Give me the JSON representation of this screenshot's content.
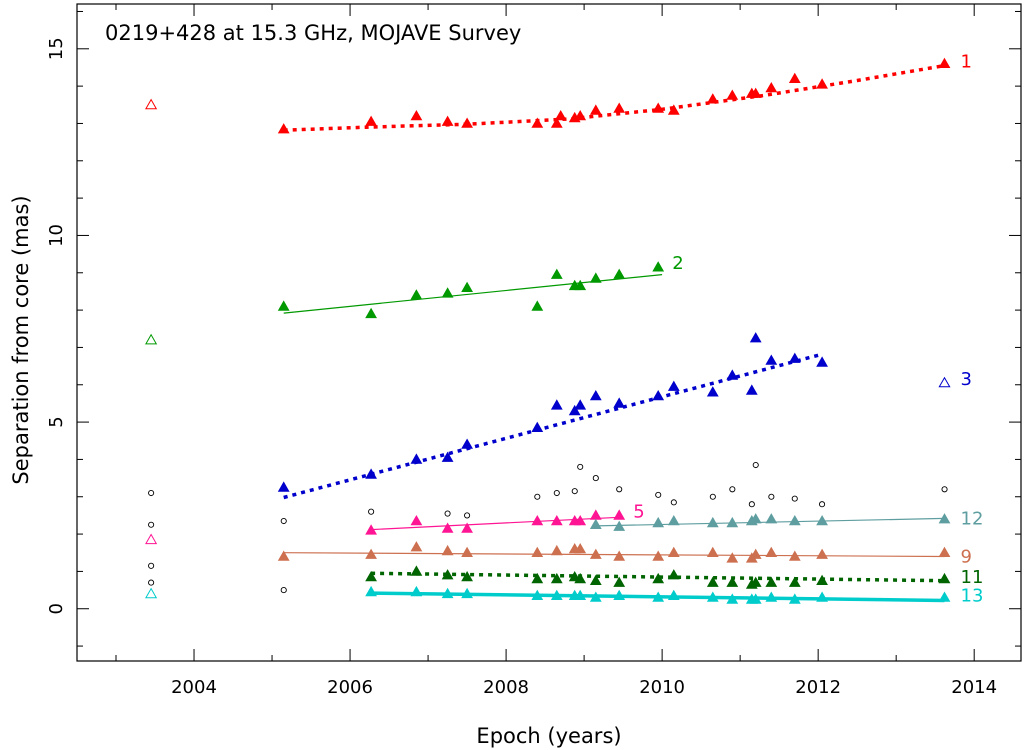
{
  "chart_data": {
    "type": "scatter",
    "title": "0219+428 at 15.3 GHz, MOJAVE Survey",
    "xlabel": "Epoch (years)",
    "ylabel": "Separation from core (mas)",
    "xlim": [
      2002.5,
      2014.6
    ],
    "ylim": [
      -1.4,
      16.2
    ],
    "xticks": [
      2004,
      2006,
      2008,
      2010,
      2012,
      2014
    ],
    "yticks": [
      0,
      5,
      10,
      15
    ],
    "xminor": [
      2003,
      2005,
      2007,
      2009,
      2011,
      2013
    ],
    "series": [
      {
        "name": "1",
        "color": "#ff0000",
        "fit": {
          "style": "dotted",
          "x": [
            2005.15,
            2006.2,
            2007.5,
            2008.8,
            2010.0,
            2011.3,
            2012.5,
            2013.62
          ],
          "y": [
            12.82,
            12.9,
            12.98,
            13.12,
            13.38,
            13.75,
            14.15,
            14.55
          ]
        },
        "points": [
          [
            2005.15,
            12.85
          ],
          [
            2006.27,
            13.05
          ],
          [
            2006.85,
            13.2
          ],
          [
            2007.25,
            13.05
          ],
          [
            2007.5,
            13.0
          ],
          [
            2008.4,
            13.0
          ],
          [
            2008.65,
            13.0
          ],
          [
            2008.7,
            13.2
          ],
          [
            2008.88,
            13.15
          ],
          [
            2008.95,
            13.2
          ],
          [
            2009.15,
            13.35
          ],
          [
            2009.45,
            13.4
          ],
          [
            2009.95,
            13.4
          ],
          [
            2010.15,
            13.35
          ],
          [
            2010.65,
            13.65
          ],
          [
            2010.9,
            13.75
          ],
          [
            2011.15,
            13.8
          ],
          [
            2011.2,
            13.8
          ],
          [
            2011.4,
            13.95
          ],
          [
            2011.7,
            14.2
          ],
          [
            2012.05,
            14.05
          ],
          [
            2013.62,
            14.6
          ]
        ],
        "label": "1"
      },
      {
        "name": "2",
        "color": "#009900",
        "fit": {
          "style": "solid",
          "x": [
            2005.15,
            2010.0
          ],
          "y": [
            7.92,
            8.95
          ]
        },
        "points": [
          [
            2005.15,
            8.1
          ],
          [
            2006.27,
            7.9
          ],
          [
            2006.85,
            8.4
          ],
          [
            2007.25,
            8.45
          ],
          [
            2007.5,
            8.6
          ],
          [
            2008.4,
            8.1
          ],
          [
            2008.65,
            8.95
          ],
          [
            2008.88,
            8.65
          ],
          [
            2008.95,
            8.65
          ],
          [
            2009.15,
            8.85
          ],
          [
            2009.45,
            8.95
          ],
          [
            2009.95,
            9.15
          ]
        ],
        "label": "2"
      },
      {
        "name": "3",
        "color": "#0000cc",
        "fit": {
          "style": "dotted",
          "x": [
            2005.15,
            2012.05
          ],
          "y": [
            2.98,
            6.82
          ]
        },
        "points": [
          [
            2005.15,
            3.25
          ],
          [
            2006.27,
            3.6
          ],
          [
            2006.85,
            4.0
          ],
          [
            2007.25,
            4.05
          ],
          [
            2007.5,
            4.4
          ],
          [
            2008.4,
            4.85
          ],
          [
            2008.65,
            5.45
          ],
          [
            2008.88,
            5.3
          ],
          [
            2008.95,
            5.45
          ],
          [
            2009.15,
            5.7
          ],
          [
            2009.45,
            5.5
          ],
          [
            2009.95,
            5.7
          ],
          [
            2010.15,
            5.95
          ],
          [
            2010.65,
            5.8
          ],
          [
            2010.9,
            6.25
          ],
          [
            2011.15,
            5.85
          ],
          [
            2011.2,
            7.25
          ],
          [
            2011.4,
            6.65
          ],
          [
            2011.7,
            6.7
          ],
          [
            2012.05,
            6.6
          ]
        ],
        "label": "3"
      },
      {
        "name": "5",
        "color": "#ff1493",
        "fit": {
          "style": "solid",
          "x": [
            2006.27,
            2009.45
          ],
          "y": [
            2.12,
            2.45
          ]
        },
        "points": [
          [
            2006.27,
            2.1
          ],
          [
            2006.85,
            2.35
          ],
          [
            2007.25,
            2.15
          ],
          [
            2007.5,
            2.15
          ],
          [
            2008.4,
            2.35
          ],
          [
            2008.65,
            2.35
          ],
          [
            2008.88,
            2.35
          ],
          [
            2008.95,
            2.35
          ],
          [
            2009.15,
            2.5
          ],
          [
            2009.45,
            2.5
          ]
        ],
        "label": "5"
      },
      {
        "name": "9",
        "color": "#cd7050",
        "fit": {
          "style": "solid",
          "x": [
            2005.15,
            2013.62
          ],
          "y": [
            1.5,
            1.4
          ]
        },
        "points": [
          [
            2005.15,
            1.4
          ],
          [
            2006.27,
            1.45
          ],
          [
            2006.85,
            1.65
          ],
          [
            2007.25,
            1.55
          ],
          [
            2007.5,
            1.5
          ],
          [
            2008.4,
            1.5
          ],
          [
            2008.65,
            1.55
          ],
          [
            2008.88,
            1.6
          ],
          [
            2008.95,
            1.6
          ],
          [
            2009.15,
            1.45
          ],
          [
            2009.45,
            1.4
          ],
          [
            2009.95,
            1.4
          ],
          [
            2010.15,
            1.5
          ],
          [
            2010.65,
            1.5
          ],
          [
            2010.9,
            1.35
          ],
          [
            2011.15,
            1.35
          ],
          [
            2011.2,
            1.45
          ],
          [
            2011.4,
            1.5
          ],
          [
            2011.7,
            1.4
          ],
          [
            2012.05,
            1.45
          ],
          [
            2013.62,
            1.5
          ]
        ],
        "label": "9"
      },
      {
        "name": "11",
        "color": "#006400",
        "fit": {
          "style": "dotted",
          "x": [
            2006.27,
            2013.62
          ],
          "y": [
            0.95,
            0.75
          ]
        },
        "points": [
          [
            2006.27,
            0.85
          ],
          [
            2006.85,
            1.0
          ],
          [
            2007.25,
            0.9
          ],
          [
            2007.5,
            0.85
          ],
          [
            2008.4,
            0.8
          ],
          [
            2008.65,
            0.8
          ],
          [
            2008.88,
            0.85
          ],
          [
            2008.95,
            0.8
          ],
          [
            2009.15,
            0.75
          ],
          [
            2009.45,
            0.7
          ],
          [
            2009.95,
            0.8
          ],
          [
            2010.15,
            0.9
          ],
          [
            2010.65,
            0.7
          ],
          [
            2010.9,
            0.7
          ],
          [
            2011.15,
            0.65
          ],
          [
            2011.2,
            0.7
          ],
          [
            2011.4,
            0.7
          ],
          [
            2011.7,
            0.7
          ],
          [
            2012.05,
            0.75
          ],
          [
            2013.62,
            0.8
          ]
        ],
        "label": "11"
      },
      {
        "name": "12",
        "color": "#5f9ea0",
        "fit": {
          "style": "solid",
          "x": [
            2009.15,
            2013.62
          ],
          "y": [
            2.22,
            2.42
          ]
        },
        "points": [
          [
            2009.15,
            2.25
          ],
          [
            2009.45,
            2.2
          ],
          [
            2009.95,
            2.3
          ],
          [
            2010.15,
            2.35
          ],
          [
            2010.65,
            2.3
          ],
          [
            2010.9,
            2.3
          ],
          [
            2011.15,
            2.35
          ],
          [
            2011.2,
            2.4
          ],
          [
            2011.4,
            2.4
          ],
          [
            2011.7,
            2.35
          ],
          [
            2012.05,
            2.35
          ],
          [
            2013.62,
            2.4
          ]
        ],
        "label": "12"
      },
      {
        "name": "13",
        "color": "#00cccc",
        "fit": {
          "style": "thick",
          "x": [
            2006.27,
            2013.62
          ],
          "y": [
            0.42,
            0.22
          ]
        },
        "points": [
          [
            2006.27,
            0.45
          ],
          [
            2006.85,
            0.45
          ],
          [
            2007.25,
            0.4
          ],
          [
            2007.5,
            0.4
          ],
          [
            2008.4,
            0.35
          ],
          [
            2008.65,
            0.35
          ],
          [
            2008.88,
            0.35
          ],
          [
            2008.95,
            0.35
          ],
          [
            2009.15,
            0.3
          ],
          [
            2009.45,
            0.35
          ],
          [
            2009.95,
            0.3
          ],
          [
            2010.15,
            0.35
          ],
          [
            2010.65,
            0.3
          ],
          [
            2010.9,
            0.25
          ],
          [
            2011.15,
            0.25
          ],
          [
            2011.2,
            0.25
          ],
          [
            2011.4,
            0.3
          ],
          [
            2011.7,
            0.25
          ],
          [
            2012.05,
            0.3
          ],
          [
            2013.62,
            0.3
          ]
        ],
        "label": "13"
      }
    ],
    "unfit_triangles": [
      {
        "x": 2003.45,
        "y": 13.5,
        "color": "#ff0000"
      },
      {
        "x": 2003.45,
        "y": 7.2,
        "color": "#009900"
      },
      {
        "x": 2003.45,
        "y": 1.85,
        "color": "#ff1493"
      },
      {
        "x": 2003.45,
        "y": 0.4,
        "color": "#00cccc"
      },
      {
        "x": 2013.62,
        "y": 6.05,
        "color": "#0000cc"
      }
    ],
    "unidentified_circles": {
      "color": "#000000",
      "points": [
        [
          2003.45,
          3.1
        ],
        [
          2003.45,
          2.25
        ],
        [
          2003.45,
          1.15
        ],
        [
          2003.45,
          0.7
        ],
        [
          2005.15,
          2.35
        ],
        [
          2005.15,
          0.5
        ],
        [
          2006.27,
          2.6
        ],
        [
          2007.25,
          2.55
        ],
        [
          2007.5,
          2.5
        ],
        [
          2008.4,
          3.0
        ],
        [
          2008.65,
          3.1
        ],
        [
          2008.88,
          3.15
        ],
        [
          2008.95,
          3.8
        ],
        [
          2009.15,
          3.5
        ],
        [
          2009.45,
          3.2
        ],
        [
          2009.95,
          3.05
        ],
        [
          2010.15,
          2.85
        ],
        [
          2010.65,
          3.0
        ],
        [
          2010.9,
          3.2
        ],
        [
          2011.15,
          2.8
        ],
        [
          2011.2,
          3.85
        ],
        [
          2011.4,
          3.0
        ],
        [
          2011.7,
          2.95
        ],
        [
          2012.05,
          2.8
        ],
        [
          2013.62,
          3.2
        ]
      ]
    }
  }
}
